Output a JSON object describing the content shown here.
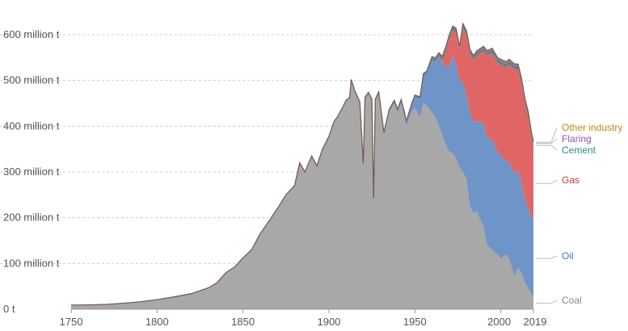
{
  "chart_data": {
    "type": "area",
    "stacked": true,
    "x_axis": {
      "min": 1750,
      "max": 2019,
      "ticks": [
        "1750",
        "1800",
        "1850",
        "1900",
        "1950",
        "2000",
        "2019"
      ]
    },
    "y_axis": {
      "min": 0,
      "max": 650,
      "ticks": [
        {
          "value": 0,
          "label": "0 t"
        },
        {
          "value": 100,
          "label": "100 million t"
        },
        {
          "value": 200,
          "label": "200 million t"
        },
        {
          "value": 300,
          "label": "300 million t"
        },
        {
          "value": 400,
          "label": "400 million t"
        },
        {
          "value": 500,
          "label": "500 million t"
        },
        {
          "value": 600,
          "label": "600 million t"
        }
      ]
    },
    "grid": true,
    "legend_placement": "right",
    "series": [
      {
        "name": "Coal",
        "color": "#a8a8a8",
        "label_color": "#888888",
        "points": [
          [
            1750,
            9
          ],
          [
            1760,
            9.5
          ],
          [
            1770,
            10.5
          ],
          [
            1780,
            13
          ],
          [
            1790,
            16
          ],
          [
            1800,
            21
          ],
          [
            1810,
            27
          ],
          [
            1820,
            34
          ],
          [
            1830,
            47
          ],
          [
            1835,
            58
          ],
          [
            1840,
            80
          ],
          [
            1845,
            92
          ],
          [
            1850,
            112
          ],
          [
            1855,
            130
          ],
          [
            1860,
            165
          ],
          [
            1865,
            192
          ],
          [
            1870,
            220
          ],
          [
            1875,
            250
          ],
          [
            1880,
            270
          ],
          [
            1883,
            320
          ],
          [
            1886,
            300
          ],
          [
            1890,
            335
          ],
          [
            1893,
            313
          ],
          [
            1896,
            348
          ],
          [
            1900,
            378
          ],
          [
            1903,
            410
          ],
          [
            1905,
            420
          ],
          [
            1908,
            440
          ],
          [
            1910,
            455
          ],
          [
            1912,
            460
          ],
          [
            1913,
            500
          ],
          [
            1915,
            475
          ],
          [
            1918,
            450
          ],
          [
            1920,
            315
          ],
          [
            1921,
            460
          ],
          [
            1923,
            470
          ],
          [
            1925,
            455
          ],
          [
            1926,
            238
          ],
          [
            1927,
            455
          ],
          [
            1929,
            470
          ],
          [
            1930,
            440
          ],
          [
            1932,
            380
          ],
          [
            1935,
            430
          ],
          [
            1938,
            450
          ],
          [
            1940,
            430
          ],
          [
            1942,
            450
          ],
          [
            1944,
            420
          ],
          [
            1945,
            400
          ],
          [
            1948,
            430
          ],
          [
            1950,
            440
          ],
          [
            1953,
            420
          ],
          [
            1955,
            450
          ],
          [
            1957,
            445
          ],
          [
            1960,
            430
          ],
          [
            1962,
            420
          ],
          [
            1964,
            400
          ],
          [
            1966,
            380
          ],
          [
            1968,
            360
          ],
          [
            1970,
            345
          ],
          [
            1972,
            340
          ],
          [
            1974,
            330
          ],
          [
            1976,
            310
          ],
          [
            1978,
            300
          ],
          [
            1980,
            285
          ],
          [
            1982,
            225
          ],
          [
            1984,
            210
          ],
          [
            1986,
            215
          ],
          [
            1988,
            195
          ],
          [
            1990,
            180
          ],
          [
            1992,
            140
          ],
          [
            1995,
            130
          ],
          [
            1998,
            120
          ],
          [
            2000,
            110
          ],
          [
            2003,
            120
          ],
          [
            2005,
            110
          ],
          [
            2008,
            70
          ],
          [
            2010,
            90
          ],
          [
            2012,
            80
          ],
          [
            2014,
            60
          ],
          [
            2016,
            45
          ],
          [
            2018,
            32
          ],
          [
            2019,
            27
          ]
        ]
      },
      {
        "name": "Oil",
        "color": "#6f94c8",
        "label_color": "#4a74b8",
        "points": [
          [
            1750,
            0
          ],
          [
            1900,
            0
          ],
          [
            1940,
            5
          ],
          [
            1945,
            8
          ],
          [
            1948,
            15
          ],
          [
            1950,
            25
          ],
          [
            1953,
            40
          ],
          [
            1955,
            60
          ],
          [
            1957,
            70
          ],
          [
            1960,
            115
          ],
          [
            1962,
            120
          ],
          [
            1964,
            150
          ],
          [
            1966,
            160
          ],
          [
            1968,
            170
          ],
          [
            1970,
            185
          ],
          [
            1972,
            215
          ],
          [
            1974,
            205
          ],
          [
            1976,
            190
          ],
          [
            1978,
            195
          ],
          [
            1980,
            185
          ],
          [
            1982,
            205
          ],
          [
            1984,
            200
          ],
          [
            1986,
            195
          ],
          [
            1988,
            215
          ],
          [
            1990,
            225
          ],
          [
            1992,
            235
          ],
          [
            1995,
            240
          ],
          [
            1998,
            225
          ],
          [
            2000,
            225
          ],
          [
            2003,
            205
          ],
          [
            2005,
            210
          ],
          [
            2008,
            225
          ],
          [
            2010,
            215
          ],
          [
            2012,
            200
          ],
          [
            2014,
            180
          ],
          [
            2016,
            175
          ],
          [
            2018,
            170
          ],
          [
            2019,
            168
          ]
        ]
      },
      {
        "name": "Gas",
        "color": "#e06666",
        "label_color": "#c0392b",
        "points": [
          [
            1750,
            0
          ],
          [
            1960,
            0
          ],
          [
            1962,
            2
          ],
          [
            1964,
            3
          ],
          [
            1966,
            4
          ],
          [
            1968,
            35
          ],
          [
            1970,
            60
          ],
          [
            1972,
            55
          ],
          [
            1974,
            70
          ],
          [
            1976,
            65
          ],
          [
            1978,
            120
          ],
          [
            1980,
            130
          ],
          [
            1982,
            130
          ],
          [
            1984,
            135
          ],
          [
            1986,
            145
          ],
          [
            1988,
            150
          ],
          [
            1990,
            160
          ],
          [
            1992,
            180
          ],
          [
            1995,
            190
          ],
          [
            1998,
            195
          ],
          [
            2000,
            200
          ],
          [
            2003,
            205
          ],
          [
            2005,
            215
          ],
          [
            2008,
            230
          ],
          [
            2010,
            220
          ],
          [
            2012,
            215
          ],
          [
            2014,
            210
          ],
          [
            2016,
            200
          ],
          [
            2018,
            170
          ],
          [
            2019,
            160
          ]
        ]
      },
      {
        "name": "Cement",
        "color": "#3a8c8c",
        "label_color": "#2a8a8a",
        "points": [
          [
            1750,
            0
          ],
          [
            1900,
            0
          ],
          [
            1920,
            1
          ],
          [
            1940,
            2
          ],
          [
            1950,
            3
          ],
          [
            1960,
            4
          ],
          [
            1970,
            5
          ],
          [
            1980,
            5
          ],
          [
            1990,
            5
          ],
          [
            2000,
            6
          ],
          [
            2010,
            6
          ],
          [
            2019,
            6
          ]
        ]
      },
      {
        "name": "Flaring",
        "color": "#a066b0",
        "label_color": "#9b4fb0",
        "points": [
          [
            1750,
            0
          ],
          [
            1950,
            0
          ],
          [
            1960,
            2
          ],
          [
            1970,
            3
          ],
          [
            1980,
            3
          ],
          [
            1990,
            3
          ],
          [
            2000,
            3
          ],
          [
            2010,
            3
          ],
          [
            2019,
            3
          ]
        ]
      },
      {
        "name": "Other industry",
        "color": "#c8961e",
        "label_color": "#c08a10",
        "points": [
          [
            1750,
            0
          ],
          [
            1950,
            0
          ],
          [
            1960,
            1
          ],
          [
            1980,
            1
          ],
          [
            2000,
            2
          ],
          [
            2019,
            2
          ]
        ]
      }
    ]
  }
}
